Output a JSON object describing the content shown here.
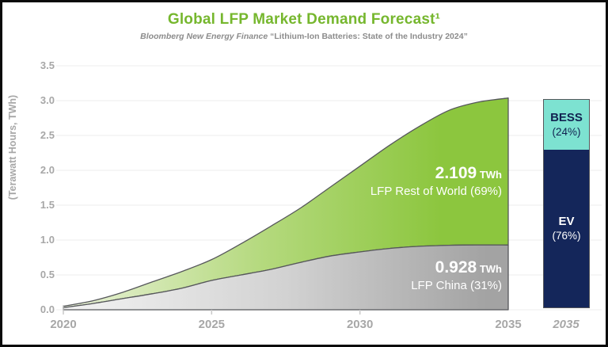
{
  "header": {
    "title": "Global LFP Market Demand Forecast¹",
    "subtitle_source": "Bloomberg New Energy Finance",
    "subtitle_report": " “Lithium-Ion Batteries: State of the Industry 2024”"
  },
  "axes": {
    "y_label": "(Terawatt Hours, TWh)",
    "y_ticks": [
      "0.0",
      "0.5",
      "1.0",
      "1.5",
      "2.0",
      "2.5",
      "3.0",
      "3.5"
    ],
    "x_ticks": [
      "2020",
      "2025",
      "2030",
      "2035"
    ],
    "bar_x_tick": "2035"
  },
  "annotations": {
    "row_value": "2.109",
    "row_unit": " TWh",
    "row_label": "LFP Rest of World (69%)",
    "china_value": "0.928",
    "china_unit": " TWh",
    "china_label": "LFP China (31%)"
  },
  "bar": {
    "bess_name": "BESS",
    "bess_pct_label": "(24%)",
    "ev_name": "EV",
    "ev_pct_label": "(76%)"
  },
  "colors": {
    "title_green": "#76b72e",
    "subtitle_gray": "#8c8c8c",
    "tick_gray": "#a7a7a7",
    "gridline": "#ececec",
    "area_green_start": "#eaf2da",
    "area_green_mid": "#b4d97d",
    "area_green_end": "#8cc63e",
    "area_gray_start": "#f3f3f3",
    "area_gray_mid": "#d2d2d2",
    "area_gray_end": "#a3a3a3",
    "outline": "#56575b",
    "bess_cyan": "#7de2d1",
    "ev_navy": "#14265a",
    "annotation_white": "#ffffff"
  },
  "chart_data": {
    "type": "area",
    "title": "Global LFP Market Demand Forecast",
    "source": "Bloomberg New Energy Finance “Lithium-Ion Batteries: State of the Industry 2024”",
    "ylabel": "(Terawatt Hours, TWh)",
    "ylim": [
      0,
      3.5
    ],
    "x": [
      2020,
      2021,
      2022,
      2023,
      2024,
      2025,
      2026,
      2027,
      2028,
      2029,
      2030,
      2031,
      2032,
      2033,
      2034,
      2035
    ],
    "series": [
      {
        "name": "LFP China",
        "share_pct": 31,
        "value_2035_twh": 0.928,
        "values": [
          0.03,
          0.09,
          0.16,
          0.23,
          0.31,
          0.42,
          0.5,
          0.58,
          0.68,
          0.77,
          0.83,
          0.88,
          0.91,
          0.925,
          0.93,
          0.928
        ]
      },
      {
        "name": "LFP Rest of World",
        "share_pct": 69,
        "value_2035_twh": 2.109,
        "values": [
          0.02,
          0.04,
          0.09,
          0.17,
          0.24,
          0.3,
          0.45,
          0.62,
          0.78,
          0.99,
          1.23,
          1.48,
          1.72,
          1.935,
          2.05,
          2.109
        ]
      }
    ],
    "bar": {
      "type": "stacked-bar",
      "year": 2035,
      "segments": [
        {
          "name": "BESS",
          "pct": 24
        },
        {
          "name": "EV",
          "pct": 76
        }
      ]
    }
  }
}
